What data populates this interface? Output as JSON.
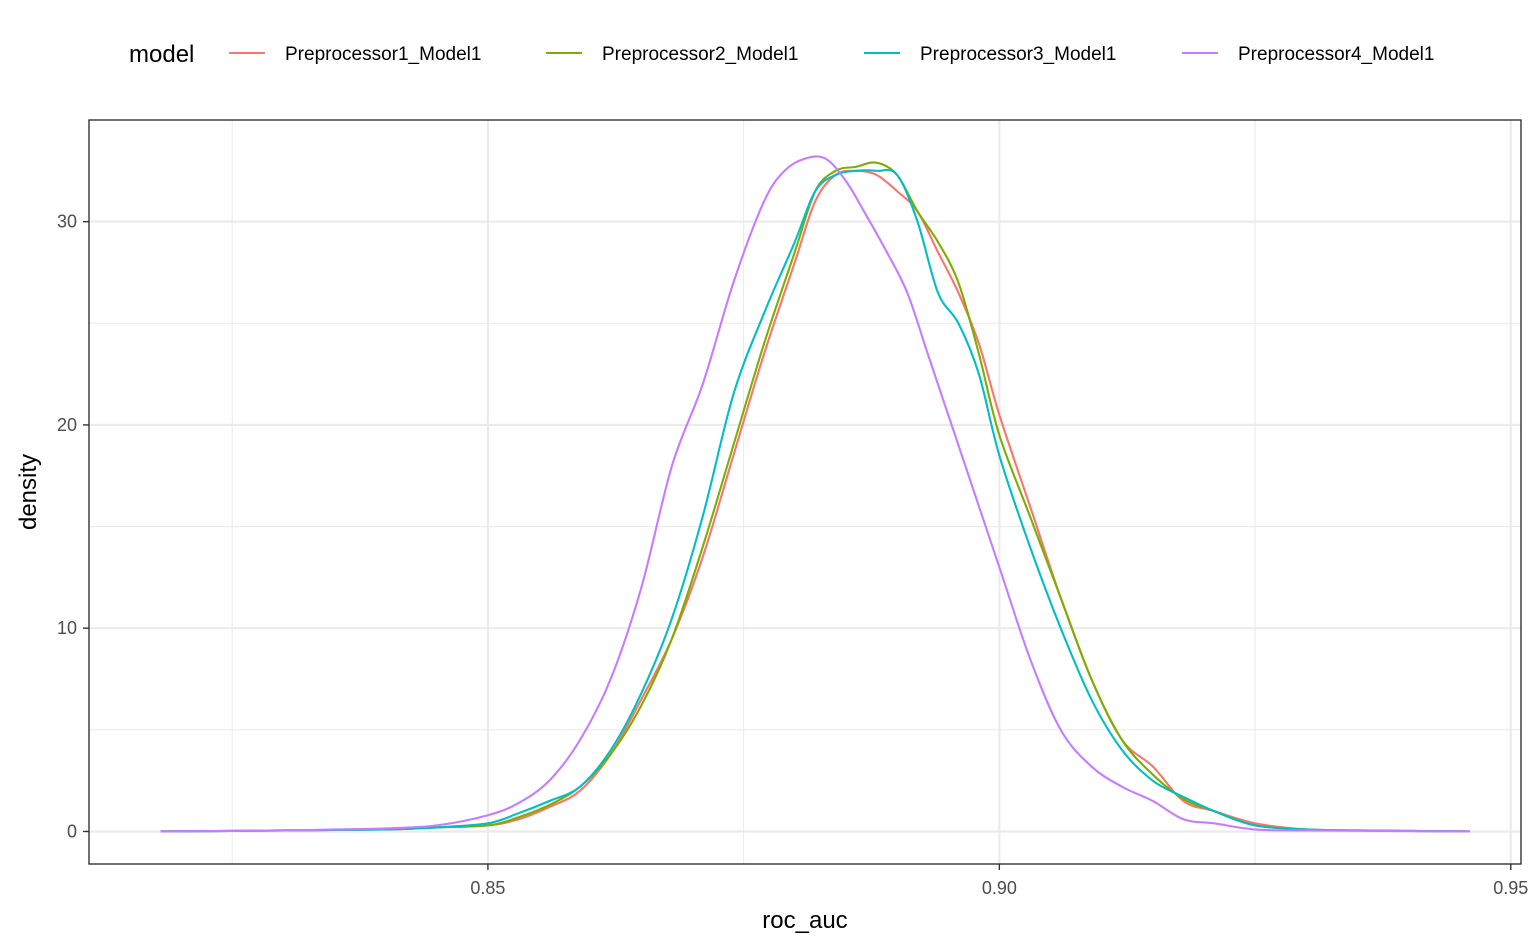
{
  "chart_data": {
    "type": "line",
    "title": "",
    "xlabel": "roc_auc",
    "ylabel": "density",
    "xlim": [
      0.811,
      0.951
    ],
    "ylim": [
      -1.6,
      35.0
    ],
    "x_major_ticks": [
      0.85,
      0.9,
      0.95
    ],
    "x_tick_labels": [
      "0.85",
      "0.90",
      "0.95"
    ],
    "x_minor_ticks": [
      0.825,
      0.875,
      0.925
    ],
    "y_major_ticks": [
      0,
      10,
      20,
      30
    ],
    "y_tick_labels": [
      "0",
      "10",
      "20",
      "30"
    ],
    "y_minor_ticks": [
      5,
      15,
      25
    ],
    "grid": true,
    "legend": {
      "title": "model",
      "position": "top"
    },
    "series": [
      {
        "name": "Preprocessor1_Model1",
        "color": "#F8766D",
        "points": [
          [
            0.818,
            0.0
          ],
          [
            0.83,
            0.05
          ],
          [
            0.84,
            0.1
          ],
          [
            0.845,
            0.2
          ],
          [
            0.85,
            0.3
          ],
          [
            0.853,
            0.6
          ],
          [
            0.856,
            1.2
          ],
          [
            0.859,
            2.0
          ],
          [
            0.862,
            3.8
          ],
          [
            0.865,
            6.5
          ],
          [
            0.868,
            9.5
          ],
          [
            0.871,
            13.5
          ],
          [
            0.874,
            18.5
          ],
          [
            0.877,
            23.5
          ],
          [
            0.88,
            28.0
          ],
          [
            0.882,
            31.0
          ],
          [
            0.884,
            32.3
          ],
          [
            0.886,
            32.5
          ],
          [
            0.888,
            32.3
          ],
          [
            0.89,
            31.5
          ],
          [
            0.892,
            30.5
          ],
          [
            0.894,
            28.5
          ],
          [
            0.896,
            26.5
          ],
          [
            0.898,
            24.0
          ],
          [
            0.9,
            20.5
          ],
          [
            0.903,
            16.0
          ],
          [
            0.906,
            11.5
          ],
          [
            0.909,
            7.5
          ],
          [
            0.912,
            4.5
          ],
          [
            0.915,
            3.2
          ],
          [
            0.918,
            1.5
          ],
          [
            0.921,
            1.0
          ],
          [
            0.925,
            0.4
          ],
          [
            0.93,
            0.1
          ],
          [
            0.935,
            0.05
          ],
          [
            0.946,
            0.0
          ]
        ]
      },
      {
        "name": "Preprocessor2_Model1",
        "color": "#7CAE00",
        "points": [
          [
            0.818,
            0.0
          ],
          [
            0.83,
            0.05
          ],
          [
            0.84,
            0.1
          ],
          [
            0.845,
            0.2
          ],
          [
            0.85,
            0.3
          ],
          [
            0.853,
            0.7
          ],
          [
            0.856,
            1.3
          ],
          [
            0.859,
            2.2
          ],
          [
            0.862,
            3.8
          ],
          [
            0.865,
            6.2
          ],
          [
            0.868,
            9.5
          ],
          [
            0.871,
            14.0
          ],
          [
            0.874,
            19.0
          ],
          [
            0.877,
            24.0
          ],
          [
            0.88,
            28.5
          ],
          [
            0.882,
            31.5
          ],
          [
            0.884,
            32.5
          ],
          [
            0.886,
            32.7
          ],
          [
            0.888,
            32.9
          ],
          [
            0.89,
            32.3
          ],
          [
            0.892,
            30.5
          ],
          [
            0.894,
            29.0
          ],
          [
            0.896,
            27.0
          ],
          [
            0.898,
            23.5
          ],
          [
            0.9,
            19.5
          ],
          [
            0.903,
            15.5
          ],
          [
            0.906,
            11.5
          ],
          [
            0.909,
            7.5
          ],
          [
            0.912,
            4.5
          ],
          [
            0.915,
            2.8
          ],
          [
            0.918,
            1.6
          ],
          [
            0.921,
            1.0
          ],
          [
            0.925,
            0.3
          ],
          [
            0.93,
            0.1
          ],
          [
            0.935,
            0.05
          ],
          [
            0.946,
            0.0
          ]
        ]
      },
      {
        "name": "Preprocessor3_Model1",
        "color": "#00BFC4",
        "points": [
          [
            0.818,
            0.0
          ],
          [
            0.83,
            0.05
          ],
          [
            0.84,
            0.1
          ],
          [
            0.845,
            0.2
          ],
          [
            0.85,
            0.4
          ],
          [
            0.853,
            0.9
          ],
          [
            0.856,
            1.5
          ],
          [
            0.859,
            2.2
          ],
          [
            0.862,
            4.0
          ],
          [
            0.865,
            6.8
          ],
          [
            0.868,
            10.5
          ],
          [
            0.871,
            15.5
          ],
          [
            0.874,
            21.5
          ],
          [
            0.877,
            25.5
          ],
          [
            0.88,
            29.0
          ],
          [
            0.882,
            31.5
          ],
          [
            0.884,
            32.3
          ],
          [
            0.886,
            32.5
          ],
          [
            0.888,
            32.5
          ],
          [
            0.89,
            32.3
          ],
          [
            0.892,
            30.0
          ],
          [
            0.894,
            26.5
          ],
          [
            0.896,
            25.0
          ],
          [
            0.898,
            22.5
          ],
          [
            0.9,
            18.5
          ],
          [
            0.903,
            14.0
          ],
          [
            0.906,
            10.0
          ],
          [
            0.909,
            6.5
          ],
          [
            0.912,
            4.0
          ],
          [
            0.915,
            2.5
          ],
          [
            0.918,
            1.7
          ],
          [
            0.921,
            1.0
          ],
          [
            0.925,
            0.3
          ],
          [
            0.93,
            0.1
          ],
          [
            0.935,
            0.05
          ],
          [
            0.946,
            0.0
          ]
        ]
      },
      {
        "name": "Preprocessor4_Model1",
        "color": "#C77CFF",
        "points": [
          [
            0.818,
            0.0
          ],
          [
            0.83,
            0.05
          ],
          [
            0.835,
            0.1
          ],
          [
            0.84,
            0.15
          ],
          [
            0.845,
            0.3
          ],
          [
            0.85,
            0.8
          ],
          [
            0.853,
            1.4
          ],
          [
            0.856,
            2.5
          ],
          [
            0.859,
            4.5
          ],
          [
            0.862,
            7.5
          ],
          [
            0.865,
            12.0
          ],
          [
            0.868,
            18.0
          ],
          [
            0.871,
            22.0
          ],
          [
            0.874,
            27.0
          ],
          [
            0.877,
            31.0
          ],
          [
            0.879,
            32.5
          ],
          [
            0.881,
            33.1
          ],
          [
            0.883,
            33.1
          ],
          [
            0.885,
            32.0
          ],
          [
            0.887,
            30.3
          ],
          [
            0.889,
            28.5
          ],
          [
            0.891,
            26.5
          ],
          [
            0.893,
            23.5
          ],
          [
            0.895,
            20.5
          ],
          [
            0.897,
            17.5
          ],
          [
            0.9,
            13.0
          ],
          [
            0.903,
            8.5
          ],
          [
            0.906,
            5.0
          ],
          [
            0.909,
            3.2
          ],
          [
            0.912,
            2.2
          ],
          [
            0.915,
            1.5
          ],
          [
            0.918,
            0.6
          ],
          [
            0.921,
            0.4
          ],
          [
            0.925,
            0.1
          ],
          [
            0.93,
            0.05
          ],
          [
            0.946,
            0.0
          ]
        ]
      }
    ]
  }
}
